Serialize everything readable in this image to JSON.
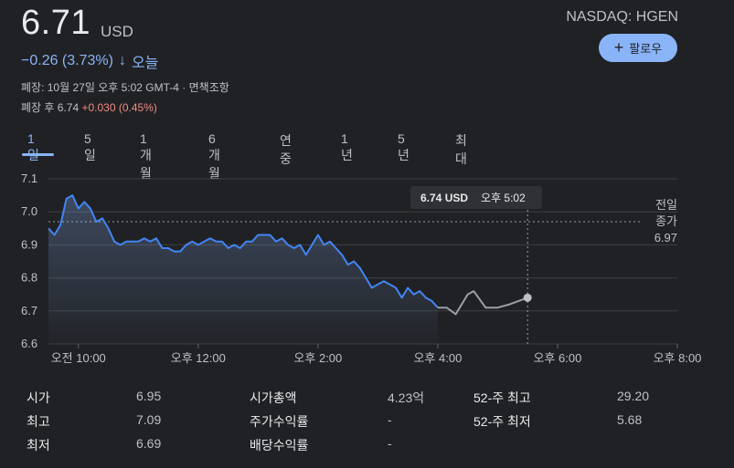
{
  "quote": {
    "price": "6.71",
    "currency": "USD",
    "exchange_ticker": "NASDAQ: HGEN",
    "change": "−0.26 (3.73%)",
    "change_arrow": "↓",
    "change_period": "오늘",
    "close_info": "폐장: 10월 27일 오후 5:02 GMT-4 · ",
    "disclaimer_link": "면책조항",
    "after_hours_prefix": "폐장 후 6.74 ",
    "after_hours_change": "+0.030 (0.45%)"
  },
  "follow_button": {
    "icon": "plus-icon",
    "label": "팔로우"
  },
  "tabs": [
    "1일",
    "5일",
    "1개월",
    "6개월",
    "연중",
    "1년",
    "5년",
    "최대"
  ],
  "active_tab": 0,
  "colors": {
    "accent": "#8ab4f8",
    "negative": "#f28b82",
    "after_hours_line": "#9aa0a6",
    "bg": "#202124"
  },
  "chart": {
    "tooltip_price": "6.74 USD",
    "tooltip_time": "오후 5:02",
    "prev_close_label": [
      "전일",
      "종가",
      "6.97"
    ]
  },
  "chart_data": {
    "type": "line",
    "ylim": [
      6.6,
      7.1
    ],
    "yticks": [
      "7.1",
      "7.0",
      "6.9",
      "6.8",
      "6.7",
      "6.6"
    ],
    "xticks": [
      "오전 10:00",
      "오후 12:00",
      "오후 2:00",
      "오후 4:00",
      "오후 6:00",
      "오후 8:00"
    ],
    "x_hours": [
      10,
      12,
      14,
      16,
      18,
      20
    ],
    "xlim_hours": [
      9.5,
      20.0
    ],
    "previous_close": 6.97,
    "series": [
      {
        "x": [
          9.5,
          9.6,
          9.7,
          9.8,
          9.9,
          10.0,
          10.1,
          10.2,
          10.3,
          10.4,
          10.5,
          10.6,
          10.7,
          10.8,
          10.9,
          11.0,
          11.1,
          11.2,
          11.3,
          11.4,
          11.5,
          11.6,
          11.7,
          11.8,
          11.9,
          12.0,
          12.1,
          12.2,
          12.3,
          12.4,
          12.5,
          12.6,
          12.7,
          12.8,
          12.9,
          13.0,
          13.1,
          13.2,
          13.3,
          13.4,
          13.5,
          13.6,
          13.7,
          13.8,
          13.9,
          14.0,
          14.1,
          14.2,
          14.3,
          14.4,
          14.5,
          14.6,
          14.7,
          14.8,
          14.9,
          15.0,
          15.1,
          15.2,
          15.3,
          15.4,
          15.5,
          15.6,
          15.7,
          15.8,
          15.9,
          16.0
        ],
        "values": [
          6.95,
          6.93,
          6.96,
          7.04,
          7.05,
          7.01,
          7.03,
          7.01,
          6.97,
          6.98,
          6.95,
          6.91,
          6.9,
          6.91,
          6.91,
          6.91,
          6.92,
          6.91,
          6.92,
          6.89,
          6.89,
          6.88,
          6.88,
          6.9,
          6.91,
          6.9,
          6.91,
          6.92,
          6.91,
          6.91,
          6.89,
          6.9,
          6.89,
          6.91,
          6.91,
          6.93,
          6.93,
          6.93,
          6.91,
          6.92,
          6.9,
          6.89,
          6.9,
          6.87,
          6.9,
          6.93,
          6.9,
          6.91,
          6.89,
          6.87,
          6.84,
          6.85,
          6.83,
          6.8,
          6.77,
          6.78,
          6.79,
          6.78,
          6.77,
          6.74,
          6.77,
          6.75,
          6.76,
          6.74,
          6.73,
          6.71
        ]
      },
      {
        "name": "after-hours",
        "x": [
          16.0,
          16.15,
          16.3,
          16.5,
          16.6,
          16.8,
          17.0,
          17.2,
          17.5
        ],
        "values": [
          6.71,
          6.71,
          6.69,
          6.75,
          6.76,
          6.71,
          6.71,
          6.72,
          6.74
        ]
      }
    ]
  },
  "stats": [
    {
      "label": "시가",
      "value": "6.95"
    },
    {
      "label": "최고",
      "value": "7.09"
    },
    {
      "label": "최저",
      "value": "6.69"
    },
    {
      "label": "시가총액",
      "value": "4.23억"
    },
    {
      "label": "주가수익률",
      "value": "-"
    },
    {
      "label": "배당수익률",
      "value": "-"
    },
    {
      "label": "52-주 최고",
      "value": "29.20"
    },
    {
      "label": "52-주 최저",
      "value": "5.68"
    }
  ]
}
